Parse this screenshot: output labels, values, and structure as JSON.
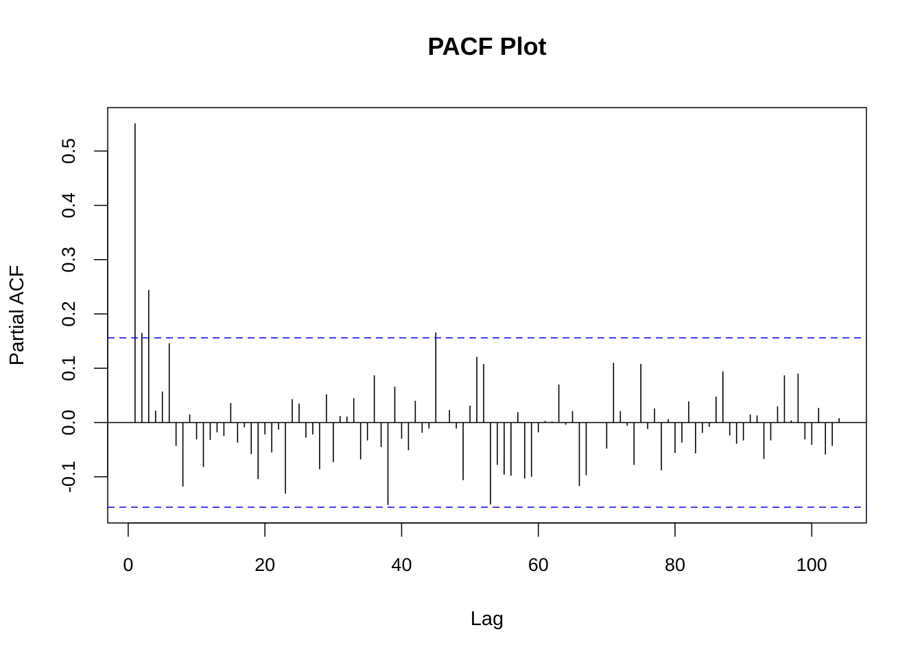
{
  "chart_data": {
    "type": "bar",
    "title": "PACF Plot",
    "xlabel": "Lag",
    "ylabel": "Partial ACF",
    "xlim": [
      -3,
      108
    ],
    "ylim": [
      -0.185,
      0.58
    ],
    "x_ticks": [
      0,
      20,
      40,
      60,
      80,
      100
    ],
    "x_tick_labels": [
      "0",
      "20",
      "40",
      "60",
      "80",
      "100"
    ],
    "y_ticks": [
      -0.1,
      0.0,
      0.1,
      0.2,
      0.3,
      0.4,
      0.5
    ],
    "y_tick_labels": [
      "-0.1",
      "0.0",
      "0.1",
      "0.2",
      "0.3",
      "0.4",
      "0.5"
    ],
    "confidence_bounds": [
      0.156,
      -0.156
    ],
    "confidence_color": "#0000ee",
    "bar_color": "#000000",
    "grid": false,
    "legend": "none",
    "lags": [
      1,
      2,
      3,
      4,
      5,
      6,
      7,
      8,
      9,
      10,
      11,
      12,
      13,
      14,
      15,
      16,
      17,
      18,
      19,
      20,
      21,
      22,
      23,
      24,
      25,
      26,
      27,
      28,
      29,
      30,
      31,
      32,
      33,
      34,
      35,
      36,
      37,
      38,
      39,
      40,
      41,
      42,
      43,
      44,
      45,
      46,
      47,
      48,
      49,
      50,
      51,
      52,
      53,
      54,
      55,
      56,
      57,
      58,
      59,
      60,
      61,
      62,
      63,
      64,
      65,
      66,
      67,
      68,
      69,
      70,
      71,
      72,
      73,
      74,
      75,
      76,
      77,
      78,
      79,
      80,
      81,
      82,
      83,
      84,
      85,
      86,
      87,
      88,
      89,
      90,
      91,
      92,
      93,
      94,
      95,
      96,
      97,
      98,
      99,
      100,
      101,
      102,
      103,
      104
    ],
    "values": [
      0.551,
      0.165,
      0.244,
      0.022,
      0.057,
      0.146,
      -0.043,
      -0.118,
      0.015,
      -0.031,
      -0.082,
      -0.032,
      -0.018,
      -0.025,
      0.036,
      -0.037,
      -0.009,
      -0.058,
      -0.104,
      -0.022,
      -0.055,
      -0.013,
      -0.131,
      0.043,
      0.035,
      -0.028,
      -0.022,
      -0.086,
      0.052,
      -0.073,
      0.012,
      0.011,
      0.045,
      -0.068,
      -0.033,
      0.087,
      -0.045,
      -0.152,
      0.066,
      -0.03,
      -0.051,
      0.04,
      -0.019,
      -0.011,
      0.166,
      0.0,
      0.023,
      -0.011,
      -0.106,
      0.031,
      0.121,
      0.108,
      -0.151,
      -0.078,
      -0.096,
      -0.098,
      0.019,
      -0.103,
      -0.1,
      -0.018,
      0.003,
      0.002,
      0.07,
      -0.004,
      0.021,
      -0.117,
      -0.097,
      0.0,
      0.0,
      -0.048,
      0.11,
      0.021,
      -0.006,
      -0.078,
      0.108,
      -0.012,
      0.026,
      -0.088,
      0.006,
      -0.056,
      -0.037,
      0.039,
      -0.057,
      -0.019,
      -0.008,
      0.048,
      0.094,
      -0.024,
      -0.039,
      -0.033,
      0.015,
      0.013,
      -0.067,
      -0.033,
      0.03,
      0.087,
      0.004,
      0.09,
      -0.031,
      -0.041,
      0.027,
      -0.059,
      -0.043,
      0.008
    ]
  }
}
